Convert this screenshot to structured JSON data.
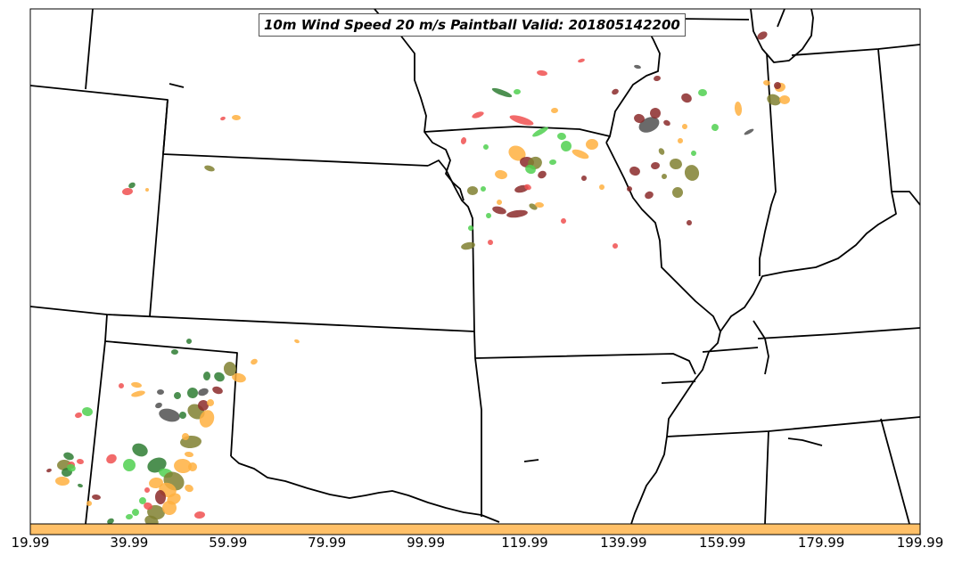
{
  "title": "10m Wind Speed 20 m/s Paintball Valid: 201805142200",
  "colorbar": {
    "ticks": [
      "19.99",
      "39.99",
      "59.99",
      "79.99",
      "99.99",
      "119.99",
      "139.99",
      "159.99",
      "179.99",
      "199.99"
    ],
    "color": "#ffc068"
  },
  "colors": {
    "red": "#f05050",
    "orange": "#ffb040",
    "green": "#50d050",
    "darkred": "#8b2a2a",
    "olive": "#808030",
    "darkgreen": "#2e7d32",
    "gray": "#505050"
  }
}
